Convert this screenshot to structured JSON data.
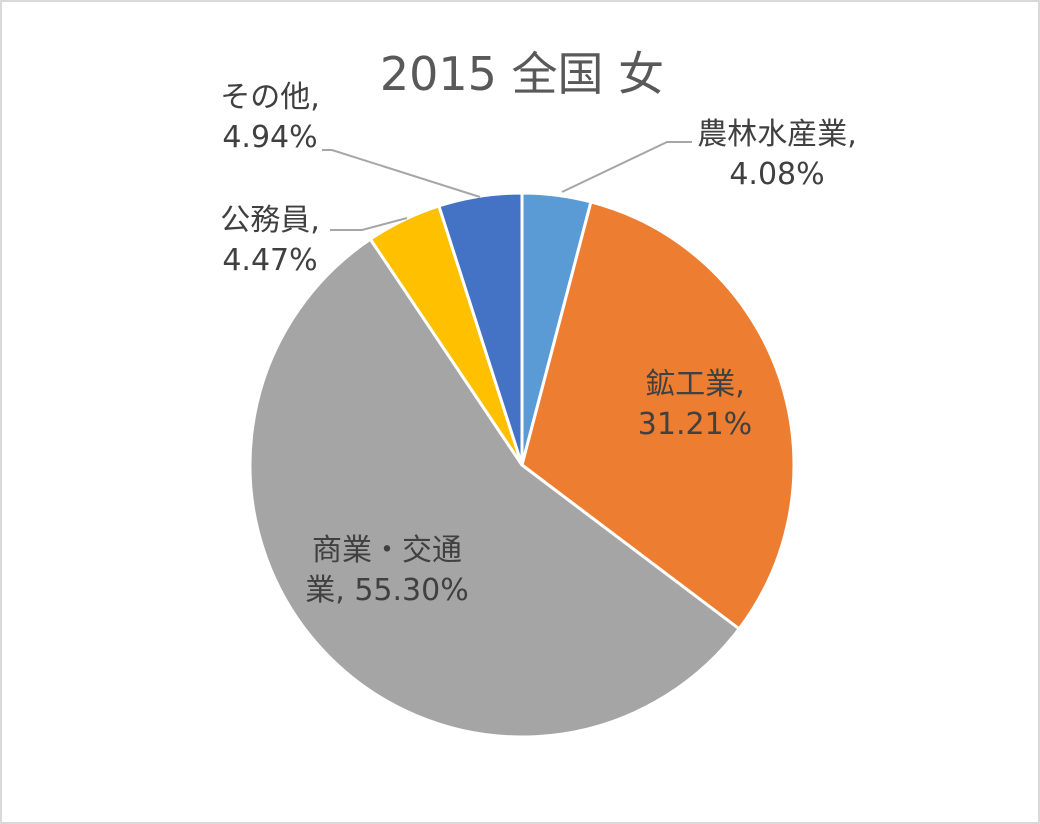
{
  "chart_data": {
    "type": "pie",
    "title": "2015 全国 女",
    "slices": [
      {
        "name": "農林水産業",
        "value": 4.08,
        "label": "4.08%",
        "color": "#5b9bd5"
      },
      {
        "name": "鉱工業",
        "value": 31.21,
        "label": "31.21%",
        "color": "#ed7d31"
      },
      {
        "name": "商業・交通業",
        "value": 55.3,
        "label": "55.30%",
        "color": "#a5a5a5"
      },
      {
        "name": "公務員",
        "value": 4.47,
        "label": "4.47%",
        "color": "#ffc000"
      },
      {
        "name": "その他",
        "value": 4.94,
        "label": "4.94%",
        "color": "#4472c4"
      }
    ],
    "data_labels": [
      {
        "line1": "農林水産業,",
        "line2": "4.08%"
      },
      {
        "line1": "鉱工業,",
        "line2": "31.21%"
      },
      {
        "line1": "商業・交通",
        "line2": "業, 55.30%"
      },
      {
        "line1": "公務員,",
        "line2": "4.47%"
      },
      {
        "line1": "その他,",
        "line2": "4.94%"
      }
    ],
    "legend": "none"
  }
}
